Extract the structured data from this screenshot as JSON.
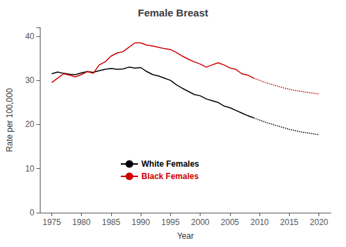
{
  "chart_data": {
    "type": "line",
    "title": "Female Breast",
    "x_label": "Year",
    "y_label": "Rate per 100,000",
    "xlim": [
      1973,
      2022
    ],
    "ylim": [
      0,
      42
    ],
    "xticks": [
      1975,
      1980,
      1985,
      1990,
      1995,
      2000,
      2005,
      2010,
      2015,
      2020
    ],
    "yticks": [
      0,
      10,
      20,
      30,
      40
    ],
    "grid": false,
    "legend": "lower left",
    "x": [
      1975,
      1976,
      1977,
      1978,
      1979,
      1980,
      1981,
      1982,
      1983,
      1984,
      1985,
      1986,
      1987,
      1988,
      1989,
      1990,
      1991,
      1992,
      1993,
      1994,
      1995,
      1996,
      1997,
      1998,
      1999,
      2000,
      2001,
      2002,
      2003,
      2004,
      2005,
      2006,
      2007,
      2008,
      2009,
      2010,
      2011,
      2012,
      2013,
      2014,
      2015,
      2016,
      2017,
      2018,
      2019,
      2020
    ],
    "series": [
      {
        "name": "White Females",
        "color": "#000000",
        "line_style": "solid",
        "values": [
          31.5,
          31.9,
          31.6,
          31.4,
          31.3,
          31.7,
          32.0,
          31.8,
          32.2,
          32.5,
          32.7,
          32.5,
          32.6,
          33.0,
          32.8,
          32.9,
          32.0,
          31.3,
          31.0,
          30.5,
          30.0,
          29.0,
          28.2,
          27.5,
          26.8,
          26.5,
          25.8,
          25.4,
          25.0,
          24.2,
          23.8,
          23.2,
          22.6,
          22.0,
          21.5,
          null,
          null,
          null,
          null,
          null,
          null,
          null,
          null,
          null,
          null,
          null
        ]
      },
      {
        "name": "White Females",
        "color": "#000000",
        "line_style": "dotted",
        "values": [
          null,
          null,
          null,
          null,
          null,
          null,
          null,
          null,
          null,
          null,
          null,
          null,
          null,
          null,
          null,
          null,
          null,
          null,
          null,
          null,
          null,
          null,
          null,
          null,
          null,
          null,
          null,
          null,
          null,
          null,
          null,
          null,
          null,
          null,
          21.5,
          21.0,
          20.5,
          20.1,
          19.7,
          19.3,
          18.9,
          18.6,
          18.3,
          18.1,
          17.9,
          17.7
        ]
      },
      {
        "name": "Black Females",
        "color": "#cc0000",
        "line_style": "solid",
        "values": [
          29.5,
          30.5,
          31.5,
          31.2,
          30.8,
          31.3,
          32.0,
          31.6,
          33.5,
          34.2,
          35.5,
          36.2,
          36.5,
          37.5,
          38.5,
          38.5,
          38.0,
          37.8,
          37.5,
          37.2,
          37.0,
          36.3,
          35.5,
          34.8,
          34.2,
          33.7,
          33.0,
          33.5,
          34.0,
          33.5,
          32.8,
          32.5,
          31.5,
          31.2,
          30.5,
          null,
          null,
          null,
          null,
          null,
          null,
          null,
          null,
          null,
          null,
          null
        ]
      },
      {
        "name": "Black Females",
        "color": "#cc0000",
        "line_style": "dotted",
        "values": [
          null,
          null,
          null,
          null,
          null,
          null,
          null,
          null,
          null,
          null,
          null,
          null,
          null,
          null,
          null,
          null,
          null,
          null,
          null,
          null,
          null,
          null,
          null,
          null,
          null,
          null,
          null,
          null,
          null,
          null,
          null,
          null,
          null,
          null,
          30.5,
          30.0,
          29.5,
          29.1,
          28.7,
          28.3,
          28.0,
          27.7,
          27.5,
          27.3,
          27.1,
          26.9
        ]
      }
    ]
  }
}
